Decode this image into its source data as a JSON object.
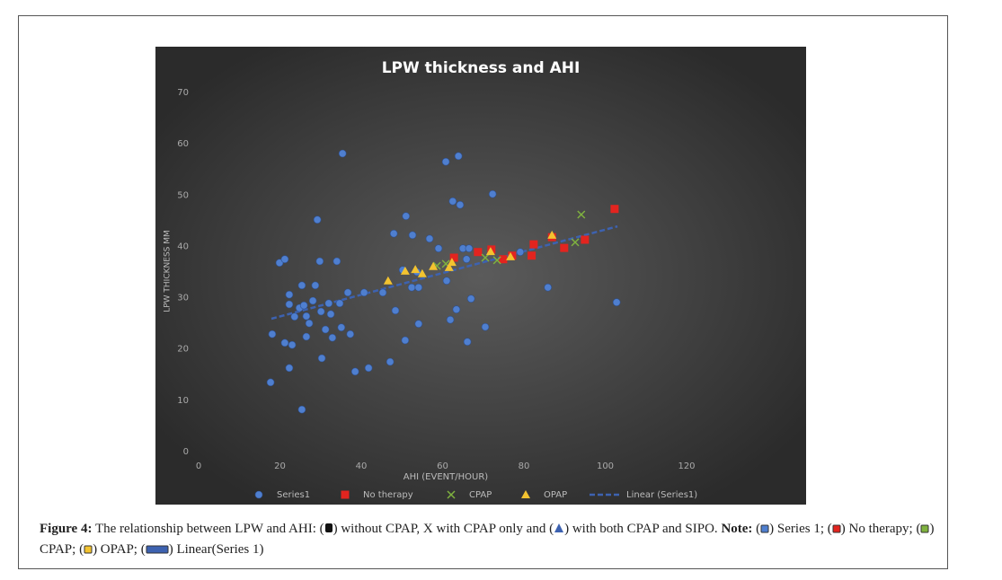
{
  "chart_data": {
    "type": "scatter",
    "title": "LPW thickness and AHI",
    "x_label": "AHI (EVENT/HOUR)",
    "y_label": "LPW THICKNESS MM",
    "xlim": [
      0,
      120
    ],
    "xticks": [
      0,
      20,
      40,
      60,
      80,
      100,
      120
    ],
    "ylim": [
      0,
      70
    ],
    "yticks": [
      0,
      10,
      20,
      30,
      40,
      50,
      60,
      70
    ],
    "legend": "bottom",
    "series": [
      {
        "name": "Series1",
        "color": "#4f7fcf",
        "marker": "circle",
        "x": [
          17.7,
          18.1,
          19.9,
          21.2,
          21.2,
          22.3,
          22.3,
          22.3,
          23.0,
          23.6,
          24.8,
          25.4,
          25.4,
          25.9,
          26.5,
          26.5,
          27.2,
          28.1,
          28.7,
          29.2,
          29.8,
          30.1,
          30.3,
          31.2,
          32.0,
          32.5,
          32.9,
          34.0,
          34.7,
          35.4,
          35.1,
          36.7,
          37.3,
          38.5,
          40.7,
          41.8,
          45.3,
          47.1,
          48.0,
          48.4,
          50.2,
          50.8,
          51.0,
          52.4,
          52.6,
          53.7,
          54.1,
          54.1,
          56.8,
          59.0,
          60.8,
          61.0,
          61.9,
          62.5,
          63.4,
          63.9,
          64.3,
          65.0,
          65.9,
          66.1,
          66.5,
          67.0,
          70.5,
          72.3,
          79.1,
          85.9,
          102.8
        ],
        "values": [
          13.5,
          22.9,
          36.8,
          37.5,
          21.2,
          30.6,
          28.7,
          16.3,
          20.8,
          26.3,
          28.0,
          32.4,
          8.2,
          28.5,
          26.4,
          22.4,
          25.0,
          29.4,
          32.4,
          45.2,
          37.1,
          27.3,
          18.2,
          23.8,
          28.9,
          26.8,
          22.2,
          37.1,
          28.9,
          58.1,
          24.2,
          31.0,
          22.9,
          15.6,
          31.0,
          16.3,
          31.0,
          17.5,
          42.5,
          27.5,
          35.4,
          21.7,
          45.9,
          32.0,
          42.2,
          35.0,
          32.0,
          24.9,
          41.5,
          39.6,
          56.5,
          33.3,
          25.7,
          48.8,
          27.7,
          57.6,
          48.1,
          39.6,
          37.5,
          21.4,
          39.6,
          29.8,
          24.3,
          50.2,
          38.9,
          32.0,
          29.1
        ]
      },
      {
        "name": "No therapy",
        "color": "#e3241f",
        "marker": "square",
        "x": [
          62.8,
          68.7,
          72.0,
          74.9,
          77.1,
          82.4,
          81.9,
          86.9,
          89.9,
          95.0,
          102.3
        ],
        "values": [
          37.8,
          38.9,
          39.4,
          37.5,
          38.2,
          40.4,
          38.2,
          41.8,
          39.7,
          41.3,
          47.3
        ]
      },
      {
        "name": "CPAP",
        "color": "#7fb23f",
        "marker": "x",
        "x": [
          58.6,
          60.8,
          70.5,
          73.4,
          94.1,
          92.6
        ],
        "values": [
          36.2,
          36.6,
          37.8,
          37.3,
          46.2,
          40.8
        ]
      },
      {
        "name": "OPAP",
        "color": "#f3c330",
        "marker": "triangle",
        "x": [
          46.6,
          50.8,
          53.3,
          55.0,
          57.7,
          61.6,
          62.3,
          71.8,
          76.7,
          86.9
        ],
        "values": [
          33.3,
          35.2,
          35.5,
          34.7,
          36.1,
          35.9,
          36.9,
          39.0,
          38.0,
          42.2
        ]
      },
      {
        "name": "Linear (Series1)",
        "color": "#3d62b0",
        "marker": "dashed-line",
        "x": [
          17.9,
          103
        ],
        "values": [
          25.9,
          43.9
        ]
      }
    ]
  },
  "caption": [
    "Figure 4:",
    " The relationship between LPW and AHI: (",
    ") without CPAP, X with CPAP only and (",
    ") with both CPAP and SIPO. ",
    "Note:",
    " (",
    ") Series 1; (",
    ") No therapy; (",
    ") CPAP; (",
    ") OPAP; (",
    ") Linear(Series 1)"
  ]
}
